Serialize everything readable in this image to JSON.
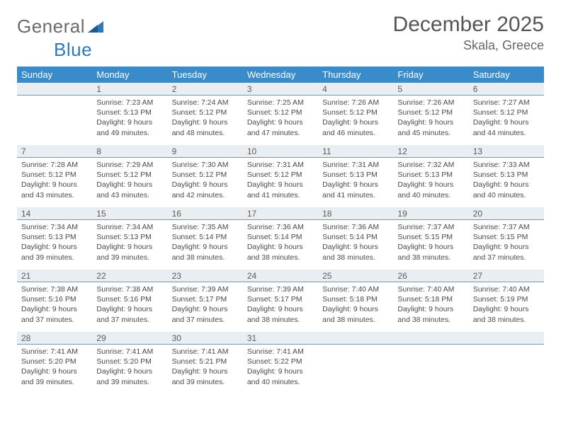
{
  "brand": {
    "part1": "General",
    "part2": "Blue"
  },
  "title": "December 2025",
  "location": "Skala, Greece",
  "colors": {
    "header_bg": "#3a8bc9",
    "daynum_bg": "#e9eef2",
    "daynum_border": "#6f97b6",
    "brand_gray": "#6a6a6a",
    "brand_blue": "#2f79b9",
    "title_color": "#555555",
    "text_color": "#4a4a4a",
    "background": "#ffffff"
  },
  "typography": {
    "title_fontsize": 30,
    "location_fontsize": 18,
    "dayheader_fontsize": 13,
    "daynum_fontsize": 12,
    "body_fontsize": 10.5
  },
  "calendar": {
    "type": "table",
    "day_headers": [
      "Sunday",
      "Monday",
      "Tuesday",
      "Wednesday",
      "Thursday",
      "Friday",
      "Saturday"
    ],
    "first_weekday_index": 1,
    "days": [
      {
        "n": 1,
        "sunrise": "7:23 AM",
        "sunset": "5:13 PM",
        "dl_h": 9,
        "dl_m": 49
      },
      {
        "n": 2,
        "sunrise": "7:24 AM",
        "sunset": "5:12 PM",
        "dl_h": 9,
        "dl_m": 48
      },
      {
        "n": 3,
        "sunrise": "7:25 AM",
        "sunset": "5:12 PM",
        "dl_h": 9,
        "dl_m": 47
      },
      {
        "n": 4,
        "sunrise": "7:26 AM",
        "sunset": "5:12 PM",
        "dl_h": 9,
        "dl_m": 46
      },
      {
        "n": 5,
        "sunrise": "7:26 AM",
        "sunset": "5:12 PM",
        "dl_h": 9,
        "dl_m": 45
      },
      {
        "n": 6,
        "sunrise": "7:27 AM",
        "sunset": "5:12 PM",
        "dl_h": 9,
        "dl_m": 44
      },
      {
        "n": 7,
        "sunrise": "7:28 AM",
        "sunset": "5:12 PM",
        "dl_h": 9,
        "dl_m": 43
      },
      {
        "n": 8,
        "sunrise": "7:29 AM",
        "sunset": "5:12 PM",
        "dl_h": 9,
        "dl_m": 43
      },
      {
        "n": 9,
        "sunrise": "7:30 AM",
        "sunset": "5:12 PM",
        "dl_h": 9,
        "dl_m": 42
      },
      {
        "n": 10,
        "sunrise": "7:31 AM",
        "sunset": "5:12 PM",
        "dl_h": 9,
        "dl_m": 41
      },
      {
        "n": 11,
        "sunrise": "7:31 AM",
        "sunset": "5:13 PM",
        "dl_h": 9,
        "dl_m": 41
      },
      {
        "n": 12,
        "sunrise": "7:32 AM",
        "sunset": "5:13 PM",
        "dl_h": 9,
        "dl_m": 40
      },
      {
        "n": 13,
        "sunrise": "7:33 AM",
        "sunset": "5:13 PM",
        "dl_h": 9,
        "dl_m": 40
      },
      {
        "n": 14,
        "sunrise": "7:34 AM",
        "sunset": "5:13 PM",
        "dl_h": 9,
        "dl_m": 39
      },
      {
        "n": 15,
        "sunrise": "7:34 AM",
        "sunset": "5:13 PM",
        "dl_h": 9,
        "dl_m": 39
      },
      {
        "n": 16,
        "sunrise": "7:35 AM",
        "sunset": "5:14 PM",
        "dl_h": 9,
        "dl_m": 38
      },
      {
        "n": 17,
        "sunrise": "7:36 AM",
        "sunset": "5:14 PM",
        "dl_h": 9,
        "dl_m": 38
      },
      {
        "n": 18,
        "sunrise": "7:36 AM",
        "sunset": "5:14 PM",
        "dl_h": 9,
        "dl_m": 38
      },
      {
        "n": 19,
        "sunrise": "7:37 AM",
        "sunset": "5:15 PM",
        "dl_h": 9,
        "dl_m": 38
      },
      {
        "n": 20,
        "sunrise": "7:37 AM",
        "sunset": "5:15 PM",
        "dl_h": 9,
        "dl_m": 37
      },
      {
        "n": 21,
        "sunrise": "7:38 AM",
        "sunset": "5:16 PM",
        "dl_h": 9,
        "dl_m": 37
      },
      {
        "n": 22,
        "sunrise": "7:38 AM",
        "sunset": "5:16 PM",
        "dl_h": 9,
        "dl_m": 37
      },
      {
        "n": 23,
        "sunrise": "7:39 AM",
        "sunset": "5:17 PM",
        "dl_h": 9,
        "dl_m": 37
      },
      {
        "n": 24,
        "sunrise": "7:39 AM",
        "sunset": "5:17 PM",
        "dl_h": 9,
        "dl_m": 38
      },
      {
        "n": 25,
        "sunrise": "7:40 AM",
        "sunset": "5:18 PM",
        "dl_h": 9,
        "dl_m": 38
      },
      {
        "n": 26,
        "sunrise": "7:40 AM",
        "sunset": "5:18 PM",
        "dl_h": 9,
        "dl_m": 38
      },
      {
        "n": 27,
        "sunrise": "7:40 AM",
        "sunset": "5:19 PM",
        "dl_h": 9,
        "dl_m": 38
      },
      {
        "n": 28,
        "sunrise": "7:41 AM",
        "sunset": "5:20 PM",
        "dl_h": 9,
        "dl_m": 39
      },
      {
        "n": 29,
        "sunrise": "7:41 AM",
        "sunset": "5:20 PM",
        "dl_h": 9,
        "dl_m": 39
      },
      {
        "n": 30,
        "sunrise": "7:41 AM",
        "sunset": "5:21 PM",
        "dl_h": 9,
        "dl_m": 39
      },
      {
        "n": 31,
        "sunrise": "7:41 AM",
        "sunset": "5:22 PM",
        "dl_h": 9,
        "dl_m": 40
      }
    ],
    "labels": {
      "sunrise": "Sunrise:",
      "sunset": "Sunset:",
      "daylight_prefix": "Daylight:",
      "hours_word": "hours",
      "and_word": "and",
      "minutes_word": "minutes."
    }
  }
}
